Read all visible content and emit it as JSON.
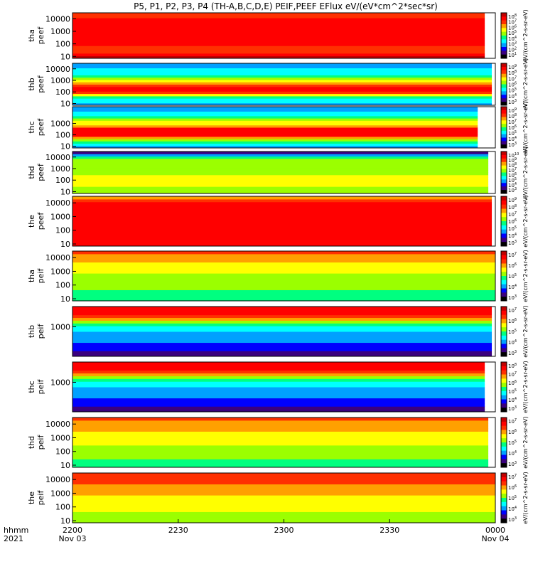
{
  "title": "P5, P1, P2, P3, P4 (TH-A,B,C,D,E) PEIF,PEEF EFlux eV/(eV*cm^2*sec*sr)",
  "colorbar_unit": "eV/(cm^2-s-sr-eV)",
  "time_axis": {
    "label_top": "hhmm",
    "label_bottom": "2021",
    "ticks": [
      {
        "t": 0,
        "hhmm": "2200",
        "date": "Nov 03"
      },
      {
        "t": 30,
        "hhmm": "2230",
        "date": ""
      },
      {
        "t": 60,
        "hhmm": "2300",
        "date": ""
      },
      {
        "t": 90,
        "hhmm": "2330",
        "date": ""
      },
      {
        "t": 120,
        "hhmm": "0000",
        "date": "Nov 04"
      }
    ],
    "range_minutes": [
      0,
      120
    ]
  },
  "panels": [
    {
      "id": "tha_peef",
      "line1": "tha",
      "line2": "peef",
      "yticks": [
        "10000",
        "1000",
        "100",
        "10"
      ],
      "cbar_ticks": [
        "10^8",
        "10^7",
        "10^6",
        "10^5",
        "10^4",
        "10^3",
        "10^2",
        "10^1"
      ]
    },
    {
      "id": "thb_peef",
      "line1": "thb",
      "line2": "peef",
      "yticks": [
        "10000",
        "1000",
        "100",
        "10"
      ],
      "cbar_ticks": [
        "10^9",
        "10^8",
        "10^7",
        "10^6",
        "10^5",
        "10^4",
        "10^3"
      ]
    },
    {
      "id": "thc_peef",
      "line1": "thc",
      "line2": "peef",
      "yticks": [
        "1000",
        "100",
        "10"
      ],
      "cbar_ticks": [
        "10^9",
        "10^8",
        "10^7",
        "10^6",
        "10^5",
        "10^4",
        "10^3"
      ]
    },
    {
      "id": "thd_peef",
      "line1": "thd",
      "line2": "peef",
      "yticks": [
        "10000",
        "1000",
        "100",
        "10"
      ],
      "cbar_ticks": [
        "10^10",
        "10^9",
        "10^8",
        "10^7",
        "10^6",
        "10^5",
        "10^4",
        "10^3"
      ]
    },
    {
      "id": "the_peef",
      "line1": "the",
      "line2": "peef",
      "yticks": [
        "10000",
        "1000",
        "100",
        "10"
      ],
      "cbar_ticks": [
        "10^9",
        "10^8",
        "10^7",
        "10^6",
        "10^5",
        "10^4",
        "10^3"
      ]
    },
    {
      "id": "tha_peif",
      "line1": "tha",
      "line2": "peif",
      "yticks": [
        "10000",
        "1000",
        "100",
        "10"
      ],
      "cbar_ticks": [
        "10^7",
        "10^6",
        "10^5",
        "10^4",
        "10^3"
      ]
    },
    {
      "id": "thb_peif",
      "line1": "thb",
      "line2": "peif",
      "yticks": [
        "1000"
      ],
      "cbar_ticks": [
        "10^7",
        "10^6",
        "10^5",
        "10^4",
        "10^3"
      ]
    },
    {
      "id": "thc_peif",
      "line1": "thc",
      "line2": "peif",
      "yticks": [
        "1000"
      ],
      "cbar_ticks": [
        "10^8",
        "10^7",
        "10^6",
        "10^5",
        "10^4",
        "10^3"
      ]
    },
    {
      "id": "thd_peif",
      "line1": "thd",
      "line2": "peif",
      "yticks": [
        "10000",
        "1000",
        "100",
        "10"
      ],
      "cbar_ticks": [
        "10^7",
        "10^6",
        "10^5",
        "10^4",
        "10^3"
      ]
    },
    {
      "id": "the_peif",
      "line1": "the",
      "line2": "peif",
      "yticks": [
        "10000",
        "1000",
        "100",
        "10"
      ],
      "cbar_ticks": [
        "10^7",
        "10^6",
        "10^5",
        "10^4",
        "10^3"
      ]
    }
  ],
  "colors": {
    "palette": [
      "#000000",
      "#3b007f",
      "#0000ff",
      "#00a0ff",
      "#00ffff",
      "#00ff80",
      "#9bff00",
      "#ffff00",
      "#ffa000",
      "#ff3000",
      "#ff0000",
      "#c00000"
    ]
  },
  "chart_data": {
    "type": "heatmap",
    "title": "P5, P1, P2, P3, P4 (TH-A,B,C,D,E) PEIF,PEEF EFlux eV/(eV*cm^2*sec*sr)",
    "x_unit": "minutes after 2200 UT, 2021 Nov 03",
    "x_range": [
      0,
      120
    ],
    "y_scale": "log",
    "y_range_eV": [
      7,
      30000
    ],
    "panels": [
      {
        "name": "tha peef",
        "stops": [
          [
            7,
            11
          ],
          [
            25,
            9
          ],
          [
            200,
            10
          ],
          [
            1500,
            10
          ],
          [
            6000,
            10
          ],
          [
            25000,
            9
          ]
        ],
        "gap_from": 117
      },
      {
        "name": "thb peef",
        "stops": [
          [
            7,
            3
          ],
          [
            40,
            5
          ],
          [
            120,
            10
          ],
          [
            250,
            10
          ],
          [
            600,
            8
          ],
          [
            1500,
            6
          ],
          [
            5000,
            4
          ],
          [
            25000,
            3
          ]
        ],
        "gap_from": 119
      },
      {
        "name": "thc peef",
        "stops": [
          [
            7,
            3
          ],
          [
            40,
            6
          ],
          [
            100,
            10
          ],
          [
            300,
            10
          ],
          [
            700,
            8
          ],
          [
            2000,
            6
          ],
          [
            6000,
            4
          ],
          [
            25000,
            3
          ]
        ],
        "gap_from": 115
      },
      {
        "name": "thd peef",
        "stops": [
          [
            7,
            6
          ],
          [
            100,
            7
          ],
          [
            1000,
            6
          ],
          [
            8000,
            6
          ],
          [
            25000,
            1
          ]
        ],
        "gap_from": 118
      },
      {
        "name": "the peef",
        "stops": [
          [
            7,
            10
          ],
          [
            200,
            10
          ],
          [
            2000,
            10
          ],
          [
            10000,
            10
          ],
          [
            25000,
            8
          ]
        ],
        "gap_from": 119
      },
      {
        "name": "tha peif",
        "stops": [
          [
            7,
            5
          ],
          [
            200,
            6
          ],
          [
            2000,
            7
          ],
          [
            10000,
            8
          ],
          [
            25000,
            9
          ]
        ],
        "gap_from": 120
      },
      {
        "name": "thb peif",
        "stops": [
          [
            7,
            1
          ],
          [
            1000,
            4
          ],
          [
            3000,
            7
          ],
          [
            10000,
            10
          ],
          [
            25000,
            10
          ]
        ],
        "gap_from": 119
      },
      {
        "name": "thc peif",
        "stops": [
          [
            7,
            1
          ],
          [
            1000,
            4
          ],
          [
            3000,
            7
          ],
          [
            10000,
            10
          ],
          [
            25000,
            10
          ]
        ],
        "gap_from": 117
      },
      {
        "name": "thd peif",
        "stops": [
          [
            7,
            5
          ],
          [
            100,
            6
          ],
          [
            1000,
            7
          ],
          [
            10000,
            8
          ],
          [
            25000,
            9
          ]
        ],
        "gap_from": 118
      },
      {
        "name": "the peif",
        "stops": [
          [
            7,
            6
          ],
          [
            200,
            7
          ],
          [
            2000,
            8
          ],
          [
            10000,
            9
          ],
          [
            25000,
            9
          ]
        ],
        "gap_from": 120
      }
    ]
  }
}
